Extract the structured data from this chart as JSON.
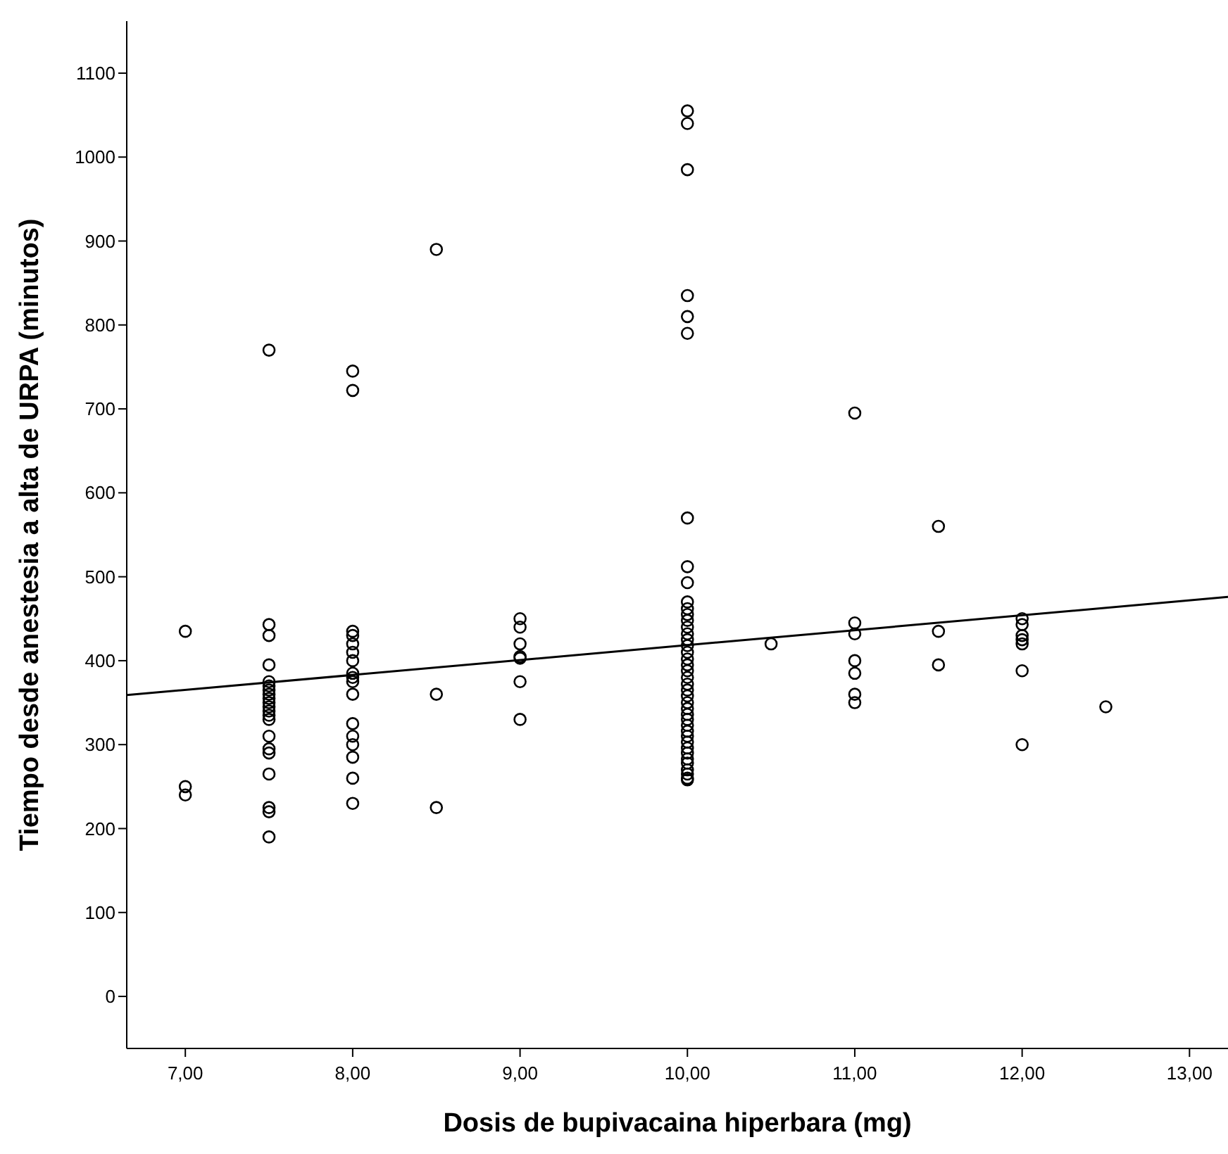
{
  "chart_data": {
    "type": "scatter",
    "xlabel": "Dosis de bupivacaina hiperbara (mg)",
    "ylabel": "Tiempo desde anestesia a alta de URPA (minutos)",
    "xlim": [
      6.65,
      13.23
    ],
    "ylim": [
      -62,
      1162
    ],
    "xticks": [
      {
        "value": 7,
        "label": "7,00"
      },
      {
        "value": 8,
        "label": "8,00"
      },
      {
        "value": 9,
        "label": "9,00"
      },
      {
        "value": 10,
        "label": "10,00"
      },
      {
        "value": 11,
        "label": "11,00"
      },
      {
        "value": 12,
        "label": "12,00"
      },
      {
        "value": 13,
        "label": "13,00"
      }
    ],
    "yticks": [
      0,
      100,
      200,
      300,
      400,
      500,
      600,
      700,
      800,
      900,
      1000,
      1100
    ],
    "grid": false,
    "series": [
      {
        "color": "#000000",
        "marker": "circle",
        "x": [
          7,
          7,
          7,
          7.5,
          7.5,
          7.5,
          7.5,
          7.5,
          7.5,
          7.5,
          7.5,
          7.5,
          7.5,
          7.5,
          7.5,
          7.5,
          7.5,
          7.5,
          7.5,
          7.5,
          7.5,
          7.5,
          7.5,
          7.5,
          8,
          8,
          8,
          8,
          8,
          8,
          8,
          8,
          8,
          8,
          8,
          8,
          8,
          8,
          8,
          8,
          8,
          8.5,
          8.5,
          8.5,
          9,
          9,
          9,
          9,
          9,
          9,
          9,
          10,
          10,
          10,
          10,
          10,
          10,
          10,
          10,
          10,
          10,
          10,
          10,
          10,
          10,
          10,
          10,
          10,
          10,
          10,
          10,
          10,
          10,
          10,
          10,
          10,
          10,
          10,
          10,
          10,
          10,
          10,
          10,
          10,
          10,
          10,
          10,
          10,
          10,
          10,
          10,
          10,
          10.5,
          11,
          11,
          11,
          11,
          11,
          11,
          11,
          11.5,
          11.5,
          11.5,
          12,
          12,
          12,
          12,
          12,
          12,
          12,
          12.5
        ],
        "values": [
          435,
          250,
          240,
          770,
          443,
          430,
          395,
          375,
          370,
          365,
          360,
          355,
          350,
          345,
          340,
          335,
          330,
          310,
          295,
          290,
          265,
          225,
          220,
          190,
          745,
          722,
          435,
          430,
          420,
          410,
          400,
          385,
          380,
          375,
          360,
          325,
          310,
          300,
          285,
          260,
          230,
          890,
          360,
          225,
          450,
          440,
          420,
          405,
          403,
          375,
          330,
          1055,
          1040,
          985,
          835,
          810,
          790,
          570,
          512,
          493,
          470,
          462,
          455,
          448,
          440,
          432,
          425,
          418,
          410,
          402,
          395,
          388,
          380,
          372,
          365,
          358,
          350,
          343,
          336,
          330,
          323,
          316,
          310,
          303,
          296,
          290,
          283,
          278,
          270,
          265,
          260,
          258,
          420,
          695,
          445,
          432,
          400,
          385,
          360,
          350,
          560,
          435,
          395,
          450,
          443,
          430,
          425,
          420,
          388,
          300,
          345
        ]
      },
      {
        "type": "line",
        "color": "#000000",
        "marker": "none",
        "x": [
          6.65,
          13.23
        ],
        "values": [
          359,
          476
        ]
      }
    ]
  }
}
